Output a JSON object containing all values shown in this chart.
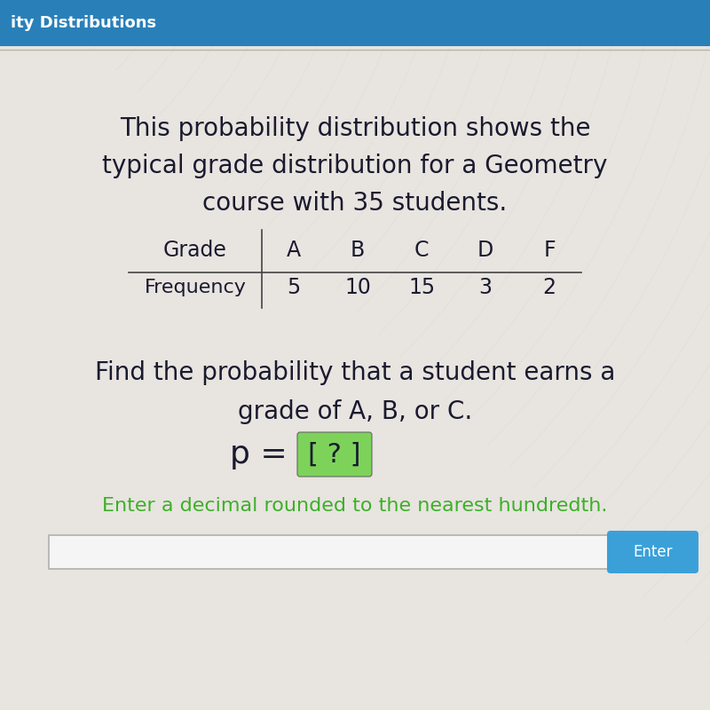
{
  "title_line1": "This probability distribution shows the",
  "title_line2": "typical grade distribution for a Geometry",
  "title_line3": "course with 35 students.",
  "table_col1_header": "Grade",
  "table_col2_headers": [
    "A",
    "B",
    "C",
    "D",
    "F"
  ],
  "table_row1_label": "Frequency",
  "table_row1_values": [
    "5",
    "10",
    "15",
    "3",
    "2"
  ],
  "question_line1": "Find the probability that a student earns a",
  "question_line2": "grade of A, B, or C.",
  "p_prefix": "p = ",
  "p_bracket": "[ ? ]",
  "hint_text": "Enter a decimal rounded to the nearest hundredth.",
  "enter_button_text": "Enter",
  "bg_color": "#e8e4e0",
  "header_bg_color": "#2980b9",
  "header_text_color": "#ffffff",
  "header_text": "ity Distributions",
  "title_color": "#1a1a2e",
  "table_text_color": "#1a1a2e",
  "question_text_color": "#1a1a2e",
  "hint_text_color": "#3cb028",
  "p_text_color": "#1a1a2e",
  "bracket_bg_color": "#7dd35a",
  "enter_btn_color": "#3ba0d8",
  "enter_btn_text_color": "#ffffff",
  "input_box_color": "#f5f5f5",
  "wave_color1": "#ddd9d5",
  "wave_color2": "#e8e6e2",
  "title_fontsize": 20,
  "question_fontsize": 20,
  "p_fontsize": 24,
  "hint_fontsize": 16,
  "table_fontsize": 17,
  "header_fontsize": 13
}
